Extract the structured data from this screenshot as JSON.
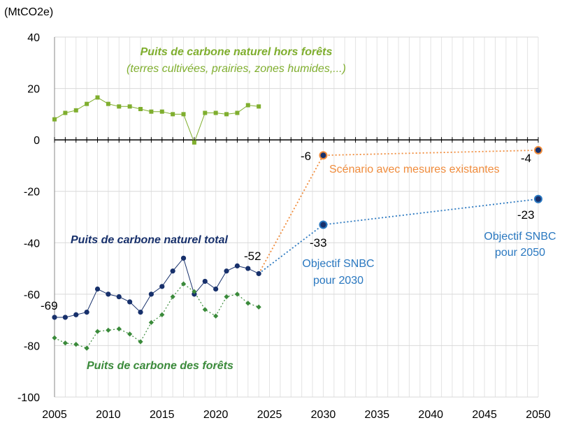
{
  "chart_data": {
    "type": "line",
    "unit_label": "(MtCO2e)",
    "xlim": [
      2005,
      2050
    ],
    "ylim": [
      -100,
      40
    ],
    "x_ticks": [
      2005,
      2010,
      2015,
      2020,
      2025,
      2030,
      2035,
      2040,
      2045,
      2050
    ],
    "y_ticks": [
      40,
      20,
      0,
      -20,
      -40,
      -60,
      -80,
      -100
    ],
    "grid": true,
    "series": [
      {
        "name": "Puits de carbone naturel hors forêts",
        "color": "#7fae2e",
        "marker": "square",
        "x": [
          2005,
          2006,
          2007,
          2008,
          2009,
          2010,
          2011,
          2012,
          2013,
          2014,
          2015,
          2016,
          2017,
          2018,
          2019,
          2020,
          2021,
          2022,
          2023,
          2024
        ],
        "y": [
          8,
          10.5,
          11.5,
          14,
          16.5,
          14,
          13,
          13,
          12,
          11,
          11,
          10,
          10,
          -1,
          10.5,
          10.5,
          10,
          10.5,
          13.5,
          13
        ]
      },
      {
        "name": "Puits de carbone naturel total",
        "color": "#17306b",
        "marker": "circle",
        "x": [
          2005,
          2006,
          2007,
          2008,
          2009,
          2010,
          2011,
          2012,
          2013,
          2014,
          2015,
          2016,
          2017,
          2018,
          2019,
          2020,
          2021,
          2022,
          2023,
          2024
        ],
        "y": [
          -69,
          -69,
          -68,
          -67,
          -58,
          -60,
          -61,
          -63,
          -67,
          -60,
          -57,
          -51,
          -46,
          -60,
          -55,
          -58,
          -51,
          -49,
          -50,
          -52
        ]
      },
      {
        "name": "Puits de carbone des forêts",
        "color": "#3a8a3a",
        "marker": "diamond",
        "x": [
          2005,
          2006,
          2007,
          2008,
          2009,
          2010,
          2011,
          2012,
          2013,
          2014,
          2015,
          2016,
          2017,
          2018,
          2019,
          2020,
          2021,
          2022,
          2023,
          2024
        ],
        "y": [
          -77,
          -79,
          -79.5,
          -81,
          -74.5,
          -74,
          -73.5,
          -75.5,
          -78.5,
          -71,
          -68,
          -61,
          -56,
          -59,
          -66,
          -68.5,
          -61,
          -60,
          -63.5,
          -65
        ]
      },
      {
        "name": "Scénario avec mesures existantes",
        "color": "#f08c3c",
        "x": [
          2024,
          2030,
          2050
        ],
        "y": [
          -52,
          -6,
          -4
        ]
      },
      {
        "name": "Objectif SNBC",
        "color": "#2a78c0",
        "x": [
          2024,
          2030,
          2050
        ],
        "y": [
          -52,
          -33,
          -23
        ]
      }
    ],
    "labels": {
      "hors_forets_line1": "Puits de carbone naturel hors forêts",
      "hors_forets_line2": "(terres cultivées, prairies, zones humides,...)",
      "total": "Puits de carbone naturel total",
      "forets": "Puits de carbone des forêts",
      "scenario": "Scénario avec mesures existantes",
      "snbc2030_line1": "Objectif SNBC",
      "snbc2030_line2": "pour 2030",
      "snbc2050_line1": "Objectif SNBC",
      "snbc2050_line2": "pour 2050"
    },
    "value_labels": {
      "start_total": "-69",
      "end_total": "-52",
      "scenario_2030": "-6",
      "scenario_2050": "-4",
      "snbc_2030": "-33",
      "snbc_2050": "-23"
    }
  }
}
